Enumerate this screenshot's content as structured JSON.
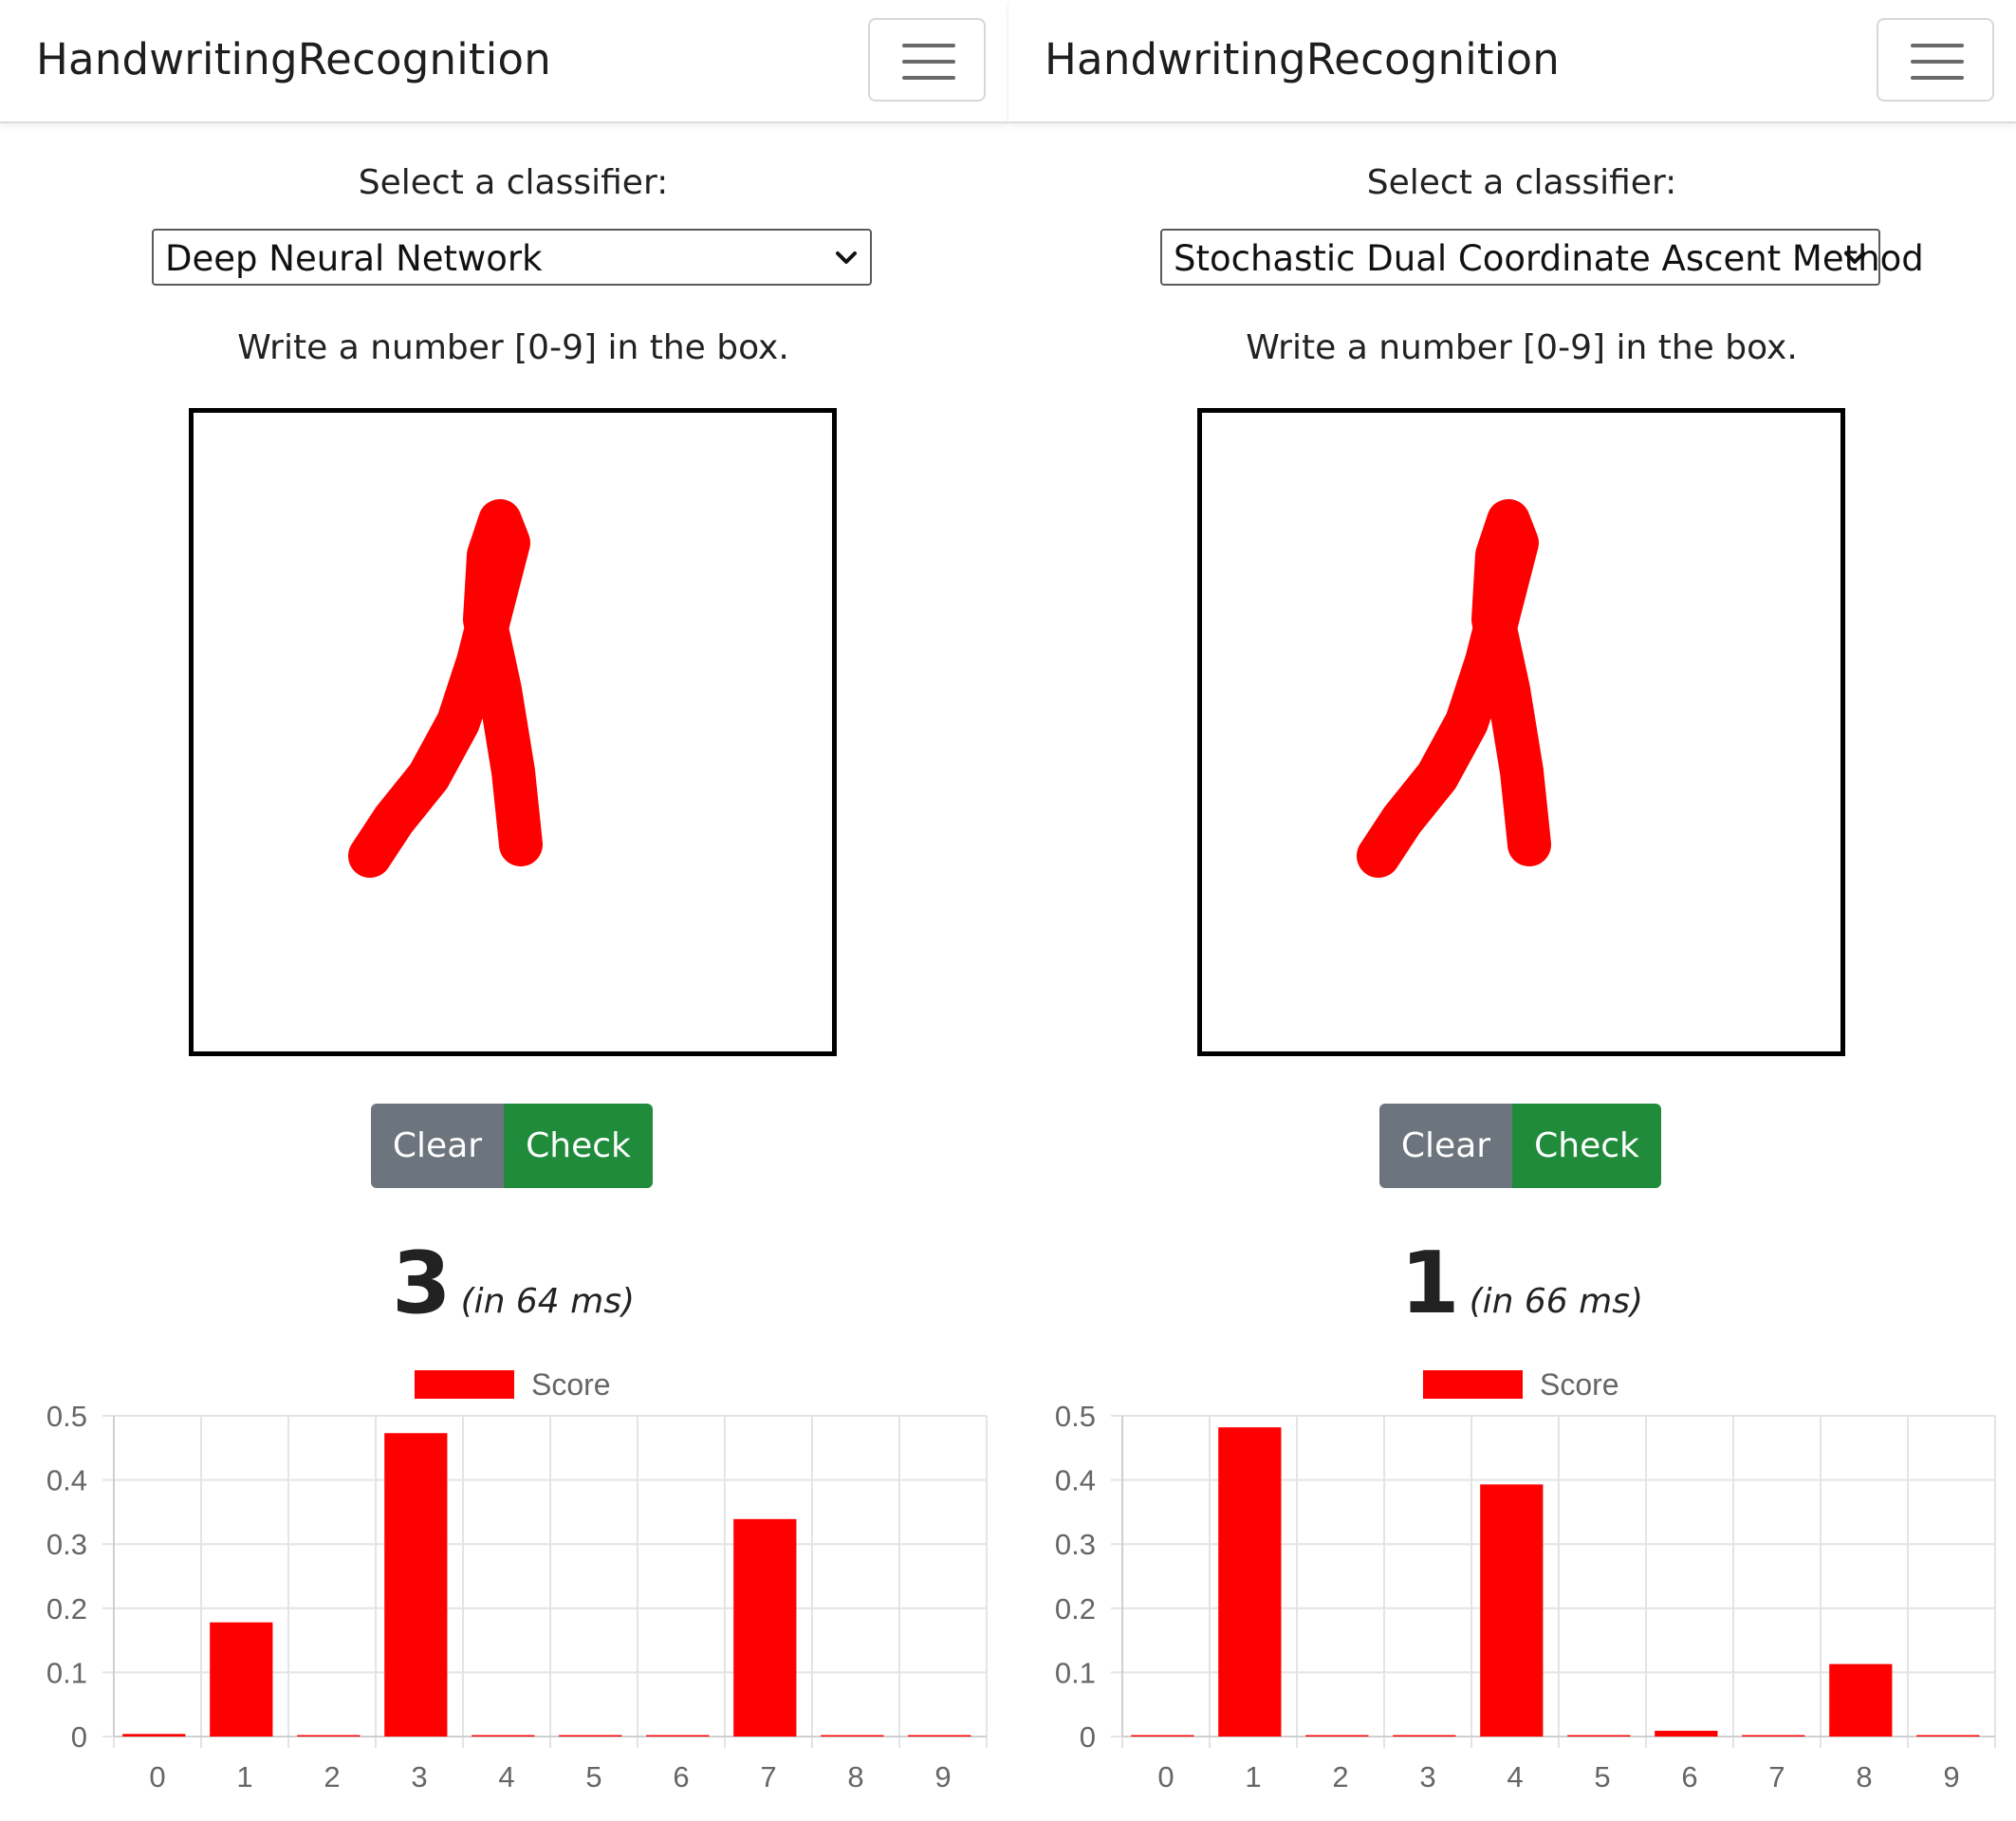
{
  "panels": [
    {
      "navbar": {
        "brand": "HandwritingRecognition",
        "toggler_icon": "hamburger-icon"
      },
      "select_label": "Select a classifier:",
      "classifier": "Deep Neural Network",
      "instructions": "Write a number [0-9] in the box.",
      "buttons": {
        "clear": "Clear",
        "check": "Check"
      },
      "result": {
        "digit": "3",
        "time": "(in 64 ms)"
      },
      "chart_data": {
        "type": "bar",
        "categories": [
          "0",
          "1",
          "2",
          "3",
          "4",
          "5",
          "6",
          "7",
          "8",
          "9"
        ],
        "series": [
          {
            "name": "Score",
            "values": [
              0.004,
              0.178,
              0.001,
              0.473,
              0.001,
              0.001,
              0.001,
              0.339,
              0.001,
              0.001
            ],
            "color": "#ff0000"
          }
        ],
        "ylim": [
          0,
          0.5
        ],
        "yticks": [
          "0",
          "0.1",
          "0.2",
          "0.3",
          "0.4",
          "0.5"
        ],
        "legend": "top",
        "grid": true
      }
    },
    {
      "navbar": {
        "brand": "HandwritingRecognition",
        "toggler_icon": "hamburger-icon"
      },
      "select_label": "Select a classifier:",
      "classifier": "Stochastic Dual Coordinate Ascent Method",
      "instructions": "Write a number [0-9] in the box.",
      "buttons": {
        "clear": "Clear",
        "check": "Check"
      },
      "result": {
        "digit": "1",
        "time": "(in 66 ms)"
      },
      "chart_data": {
        "type": "bar",
        "categories": [
          "0",
          "1",
          "2",
          "3",
          "4",
          "5",
          "6",
          "7",
          "8",
          "9"
        ],
        "series": [
          {
            "name": "Score",
            "values": [
              0.001,
              0.482,
              0.001,
              0.001,
              0.393,
              0.001,
              0.009,
              0.001,
              0.113,
              0.001
            ],
            "color": "#ff0000"
          }
        ],
        "ylim": [
          0,
          0.5
        ],
        "yticks": [
          "0",
          "0.1",
          "0.2",
          "0.3",
          "0.4",
          "0.5"
        ],
        "legend": "top",
        "grid": true
      }
    }
  ],
  "colors": {
    "stroke": "#ff0000",
    "clear_btn": "#6c757d",
    "check_btn": "#208c3b"
  }
}
